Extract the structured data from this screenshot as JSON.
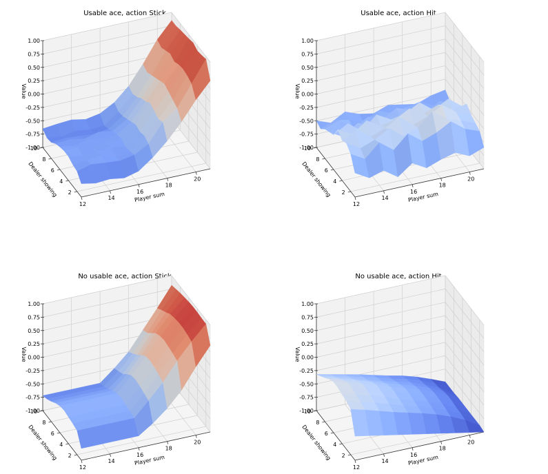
{
  "chart_data": [
    {
      "type": "surface",
      "title": "Usable ace, action Stick",
      "xlabel": "Player sum",
      "ylabel": "Dealer showing",
      "zlabel": "Value",
      "xlim": [
        12,
        21
      ],
      "ylim": [
        1,
        10
      ],
      "zlim": [
        -1.0,
        1.0
      ],
      "xticks": [
        "12",
        "14",
        "16",
        "18",
        "20"
      ],
      "yticks": [
        "2",
        "4",
        "6",
        "8",
        "10"
      ],
      "zticks": [
        "-1.00",
        "-0.75",
        "-0.50",
        "-0.25",
        "0.00",
        "0.25",
        "0.50",
        "0.75",
        "1.00"
      ],
      "x": [
        12,
        13,
        14,
        15,
        16,
        17,
        18,
        19,
        20,
        21
      ],
      "y": [
        1,
        2,
        3,
        4,
        5,
        6,
        7,
        8,
        9,
        10
      ],
      "z": [
        [
          -0.75,
          -0.8,
          -0.78,
          -0.82,
          -0.75,
          -0.55,
          -0.3,
          0.0,
          0.35,
          0.65
        ],
        [
          -0.62,
          -0.55,
          -0.58,
          -0.6,
          -0.55,
          -0.4,
          -0.05,
          0.15,
          0.55,
          0.95
        ],
        [
          -0.6,
          -0.58,
          -0.55,
          -0.62,
          -0.58,
          -0.35,
          -0.1,
          0.2,
          0.6,
          0.92
        ],
        [
          -0.55,
          -0.6,
          -0.58,
          -0.55,
          -0.6,
          -0.38,
          -0.05,
          0.25,
          0.62,
          0.9
        ],
        [
          -0.55,
          -0.55,
          -0.6,
          -0.58,
          -0.55,
          -0.35,
          0.0,
          0.3,
          0.6,
          0.95
        ],
        [
          -0.58,
          -0.62,
          -0.55,
          -0.6,
          -0.58,
          -0.4,
          -0.08,
          0.25,
          0.55,
          0.92
        ],
        [
          -0.62,
          -0.6,
          -0.65,
          -0.58,
          -0.62,
          -0.45,
          -0.12,
          0.2,
          0.6,
          0.9
        ],
        [
          -0.7,
          -0.68,
          -0.7,
          -0.72,
          -0.68,
          -0.5,
          -0.2,
          0.15,
          0.55,
          0.88
        ],
        [
          -0.72,
          -0.75,
          -0.7,
          -0.74,
          -0.72,
          -0.52,
          -0.25,
          0.1,
          0.5,
          0.85
        ],
        [
          -0.65,
          -0.62,
          -0.6,
          -0.65,
          -0.6,
          -0.45,
          -0.2,
          0.15,
          0.55,
          0.85
        ]
      ]
    },
    {
      "type": "surface",
      "title": "Usable ace, action Hit",
      "xlabel": "Player sum",
      "ylabel": "Dealer showing",
      "zlabel": "Value",
      "xlim": [
        12,
        21
      ],
      "ylim": [
        1,
        10
      ],
      "zlim": [
        -1.0,
        1.0
      ],
      "xticks": [
        "12",
        "14",
        "16",
        "18",
        "20"
      ],
      "yticks": [
        "2",
        "4",
        "6",
        "8",
        "10"
      ],
      "zticks": [
        "-1.00",
        "-0.75",
        "-0.50",
        "-0.25",
        "0.00",
        "0.25",
        "0.50",
        "0.75",
        "1.00"
      ],
      "x": [
        12,
        13,
        14,
        15,
        16,
        17,
        18,
        19,
        20,
        21
      ],
      "y": [
        1,
        2,
        3,
        4,
        5,
        6,
        7,
        8,
        9,
        10
      ],
      "z": [
        [
          -0.55,
          -0.7,
          -0.62,
          -0.8,
          -0.6,
          -0.75,
          -0.65,
          -0.58,
          -0.7,
          -0.6
        ],
        [
          -0.3,
          -0.45,
          -0.2,
          -0.4,
          -0.15,
          -0.35,
          -0.25,
          -0.1,
          -0.3,
          -0.4
        ],
        [
          -0.2,
          -0.35,
          -0.25,
          -0.1,
          -0.3,
          -0.2,
          0.05,
          -0.15,
          -0.25,
          -0.35
        ],
        [
          -0.25,
          -0.1,
          -0.3,
          -0.2,
          -0.05,
          -0.25,
          -0.15,
          0.0,
          -0.2,
          -0.3
        ],
        [
          -0.15,
          -0.3,
          -0.1,
          -0.25,
          -0.2,
          -0.05,
          -0.2,
          -0.1,
          -0.25,
          -0.2
        ],
        [
          -0.35,
          -0.2,
          -0.4,
          -0.15,
          -0.3,
          -0.25,
          -0.1,
          -0.3,
          -0.15,
          -0.35
        ],
        [
          -0.4,
          -0.55,
          -0.35,
          -0.5,
          -0.4,
          -0.45,
          -0.3,
          -0.4,
          -0.5,
          -0.45
        ],
        [
          -0.45,
          -0.35,
          -0.55,
          -0.4,
          -0.5,
          -0.35,
          -0.45,
          -0.55,
          -0.4,
          -0.5
        ],
        [
          -0.55,
          -0.45,
          -0.5,
          -0.6,
          -0.45,
          -0.55,
          -0.5,
          -0.45,
          -0.6,
          -0.55
        ],
        [
          -0.5,
          -0.6,
          -0.45,
          -0.55,
          -0.6,
          -0.5,
          -0.55,
          -0.6,
          -0.5,
          -0.45
        ]
      ]
    },
    {
      "type": "surface",
      "title": "No usable ace, action Stick",
      "xlabel": "Player sum",
      "ylabel": "Dealer showing",
      "zlabel": "Value",
      "xlim": [
        12,
        21
      ],
      "ylim": [
        1,
        10
      ],
      "zlim": [
        -1.0,
        1.0
      ],
      "xticks": [
        "12",
        "14",
        "16",
        "18",
        "20"
      ],
      "yticks": [
        "2",
        "4",
        "6",
        "8",
        "10"
      ],
      "zticks": [
        "-1.00",
        "-0.75",
        "-0.50",
        "-0.25",
        "0.00",
        "0.25",
        "0.50",
        "0.75",
        "1.00"
      ],
      "x": [
        12,
        13,
        14,
        15,
        16,
        17,
        18,
        19,
        20,
        21
      ],
      "y": [
        1,
        2,
        3,
        4,
        5,
        6,
        7,
        8,
        9,
        10
      ],
      "z": [
        [
          -0.78,
          -0.78,
          -0.78,
          -0.78,
          -0.78,
          -0.6,
          -0.38,
          -0.1,
          0.28,
          0.62
        ],
        [
          -0.55,
          -0.55,
          -0.55,
          -0.55,
          -0.55,
          -0.28,
          0.0,
          0.35,
          0.65,
          0.92
        ],
        [
          -0.52,
          -0.52,
          -0.52,
          -0.52,
          -0.52,
          -0.25,
          0.05,
          0.38,
          0.68,
          0.92
        ],
        [
          -0.5,
          -0.5,
          -0.5,
          -0.5,
          -0.5,
          -0.22,
          0.08,
          0.4,
          0.7,
          0.93
        ],
        [
          -0.48,
          -0.48,
          -0.48,
          -0.48,
          -0.48,
          -0.2,
          0.1,
          0.42,
          0.7,
          0.93
        ],
        [
          -0.5,
          -0.5,
          -0.5,
          -0.5,
          -0.5,
          -0.22,
          0.08,
          0.4,
          0.68,
          0.92
        ],
        [
          -0.55,
          -0.55,
          -0.55,
          -0.55,
          -0.55,
          -0.3,
          0.0,
          0.35,
          0.65,
          0.9
        ],
        [
          -0.62,
          -0.62,
          -0.62,
          -0.62,
          -0.62,
          -0.4,
          -0.1,
          0.25,
          0.58,
          0.88
        ],
        [
          -0.68,
          -0.68,
          -0.68,
          -0.68,
          -0.68,
          -0.45,
          -0.18,
          0.15,
          0.52,
          0.85
        ],
        [
          -0.72,
          -0.72,
          -0.72,
          -0.72,
          -0.72,
          -0.5,
          -0.25,
          0.1,
          0.45,
          0.82
        ]
      ]
    },
    {
      "type": "surface",
      "title": "No usable ace, action Hit",
      "xlabel": "Player sum",
      "ylabel": "Dealer showing",
      "zlabel": "Value",
      "xlim": [
        12,
        21
      ],
      "ylim": [
        1,
        10
      ],
      "zlim": [
        -1.0,
        1.0
      ],
      "xticks": [
        "12",
        "14",
        "16",
        "18",
        "20"
      ],
      "yticks": [
        "2",
        "4",
        "6",
        "8",
        "10"
      ],
      "zticks": [
        "-1.00",
        "-0.75",
        "-0.50",
        "-0.25",
        "0.00",
        "0.25",
        "0.50",
        "0.75",
        "1.00"
      ],
      "x": [
        12,
        13,
        14,
        15,
        16,
        17,
        18,
        19,
        20,
        21
      ],
      "y": [
        1,
        2,
        3,
        4,
        5,
        6,
        7,
        8,
        9,
        10
      ],
      "z": [
        [
          -0.55,
          -0.6,
          -0.65,
          -0.7,
          -0.75,
          -0.8,
          -0.85,
          -0.9,
          -0.95,
          -1.0
        ],
        [
          -0.15,
          -0.22,
          -0.3,
          -0.38,
          -0.45,
          -0.52,
          -0.6,
          -0.7,
          -0.82,
          -0.98
        ],
        [
          -0.1,
          -0.18,
          -0.25,
          -0.33,
          -0.42,
          -0.5,
          -0.58,
          -0.68,
          -0.8,
          -0.98
        ],
        [
          -0.08,
          -0.15,
          -0.22,
          -0.3,
          -0.4,
          -0.48,
          -0.56,
          -0.66,
          -0.8,
          -0.98
        ],
        [
          -0.05,
          -0.12,
          -0.2,
          -0.28,
          -0.38,
          -0.46,
          -0.55,
          -0.65,
          -0.78,
          -0.98
        ],
        [
          -0.05,
          -0.12,
          -0.2,
          -0.28,
          -0.38,
          -0.46,
          -0.55,
          -0.65,
          -0.78,
          -0.98
        ],
        [
          -0.1,
          -0.18,
          -0.25,
          -0.33,
          -0.42,
          -0.5,
          -0.58,
          -0.68,
          -0.8,
          -0.98
        ],
        [
          -0.18,
          -0.25,
          -0.32,
          -0.4,
          -0.48,
          -0.55,
          -0.62,
          -0.72,
          -0.84,
          -0.99
        ],
        [
          -0.25,
          -0.32,
          -0.38,
          -0.45,
          -0.52,
          -0.6,
          -0.66,
          -0.75,
          -0.86,
          -0.99
        ],
        [
          -0.32,
          -0.38,
          -0.44,
          -0.5,
          -0.57,
          -0.64,
          -0.7,
          -0.78,
          -0.88,
          -0.99
        ]
      ]
    }
  ]
}
